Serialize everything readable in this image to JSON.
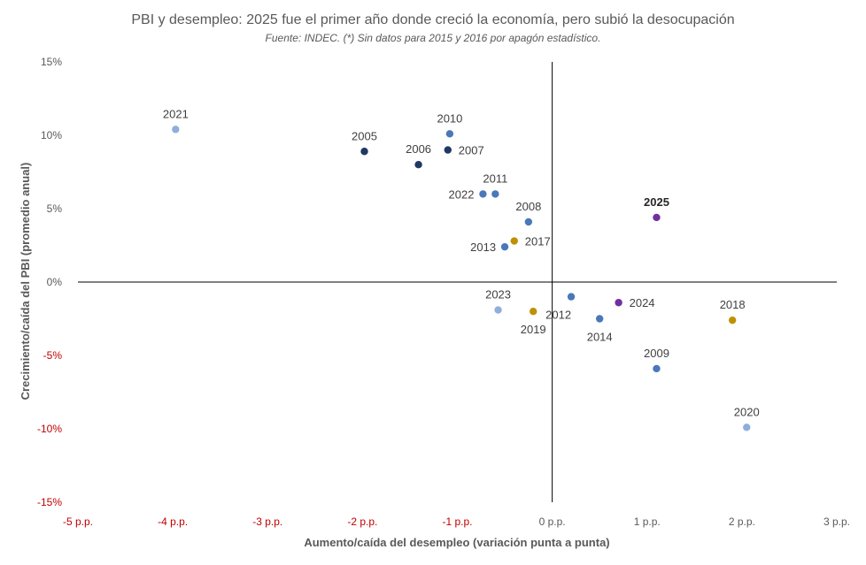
{
  "chart_data": {
    "type": "scatter",
    "title": "PBI y desempleo: 2025 fue el primer año donde creció la economía, pero subió la desocupación",
    "subtitle": "Fuente: INDEC. (*) Sin datos para 2015 y 2016 por apagón estadístico.",
    "xlabel": "Aumento/caída del desempleo (variación punta a punta)",
    "ylabel": "Crecimiento/caída del PBI (promedio anual)",
    "xlim": [
      -5,
      3
    ],
    "ylim": [
      -15,
      15
    ],
    "x_ticks": [
      "-5 p.p.",
      "-4 p.p.",
      "-3 p.p.",
      "-2 p.p.",
      "-1 p.p.",
      "0 p.p.",
      "1 p.p.",
      "2 p.p.",
      "3 p.p."
    ],
    "y_ticks": [
      "15%",
      "10%",
      "5%",
      "0%",
      "-5%",
      "-10%",
      "-15%"
    ],
    "negative_tick_color": "#c00000",
    "tick_color": "#595959",
    "grid": false,
    "legend": "none",
    "colors": {
      "dark_blue": "#1f3864",
      "mid_blue": "#4a78b8",
      "light_blue": "#8eaedc",
      "gold": "#bf9000",
      "purple": "#7030a0"
    },
    "points": [
      {
        "label": "2005",
        "x": -1.98,
        "y": 8.9,
        "color": "dark_blue",
        "pos": "above"
      },
      {
        "label": "2006",
        "x": -1.41,
        "y": 8.0,
        "color": "dark_blue",
        "pos": "above"
      },
      {
        "label": "2007",
        "x": -1.1,
        "y": 9.0,
        "color": "dark_blue",
        "pos": "right"
      },
      {
        "label": "2008",
        "x": -0.25,
        "y": 4.1,
        "color": "mid_blue",
        "pos": "above"
      },
      {
        "label": "2009",
        "x": 1.1,
        "y": -5.9,
        "color": "mid_blue",
        "pos": "above"
      },
      {
        "label": "2010",
        "x": -1.08,
        "y": 10.1,
        "color": "mid_blue",
        "pos": "above"
      },
      {
        "label": "2011",
        "x": -0.6,
        "y": 6.0,
        "color": "mid_blue",
        "pos": "above"
      },
      {
        "label": "2012",
        "x": 0.2,
        "y": -1.0,
        "color": "mid_blue",
        "pos": "below-left"
      },
      {
        "label": "2013",
        "x": -0.5,
        "y": 2.4,
        "color": "mid_blue",
        "pos": "left"
      },
      {
        "label": "2014",
        "x": 0.5,
        "y": -2.5,
        "color": "mid_blue",
        "pos": "below"
      },
      {
        "label": "2017",
        "x": -0.4,
        "y": 2.8,
        "color": "gold",
        "pos": "right"
      },
      {
        "label": "2018",
        "x": 1.9,
        "y": -2.6,
        "color": "gold",
        "pos": "above"
      },
      {
        "label": "2019",
        "x": -0.2,
        "y": -2.0,
        "color": "gold",
        "pos": "below"
      },
      {
        "label": "2020",
        "x": 2.05,
        "y": -9.9,
        "color": "light_blue",
        "pos": "above"
      },
      {
        "label": "2021",
        "x": -3.97,
        "y": 10.4,
        "color": "light_blue",
        "pos": "above"
      },
      {
        "label": "2022",
        "x": -0.73,
        "y": 6.0,
        "color": "mid_blue",
        "pos": "left"
      },
      {
        "label": "2023",
        "x": -0.57,
        "y": -1.9,
        "color": "light_blue",
        "pos": "above"
      },
      {
        "label": "2024",
        "x": 0.7,
        "y": -1.4,
        "color": "purple",
        "pos": "right"
      },
      {
        "label": "2025",
        "x": 1.1,
        "y": 4.4,
        "color": "purple",
        "pos": "above",
        "bold": true
      }
    ]
  }
}
